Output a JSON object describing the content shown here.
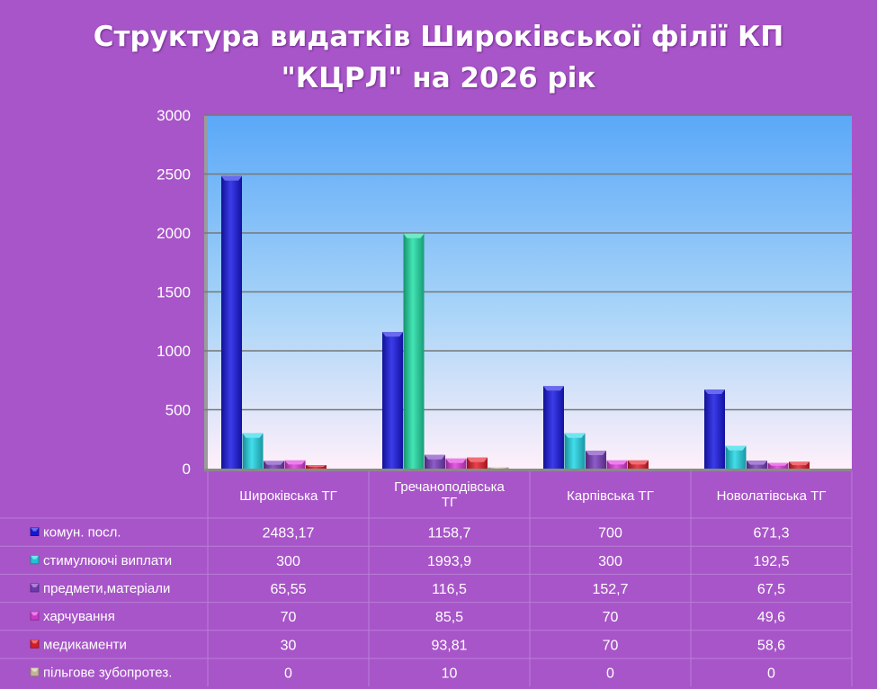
{
  "chart_data": {
    "type": "bar",
    "title": "Структура видатків Широківської філії КП \"КЦРЛ\" на 2026 рік",
    "title_lines": [
      "Структура видатків Широківської філії КП",
      "\"КЦРЛ\" на 2026 рік"
    ],
    "categories": [
      "Широківська ТГ",
      "Гречаноподівська ТГ",
      "Карпівська ТГ",
      "Новолатівська ТГ"
    ],
    "ylim": [
      0,
      3000
    ],
    "yticks": [
      "0",
      "500",
      "1000",
      "1500",
      "2000",
      "2500",
      "3000"
    ],
    "grid": true,
    "legend": "data-table",
    "series": [
      {
        "name": "комун. посл.",
        "color": "#1a1ae6",
        "values": [
          2483.17,
          1158.7,
          700,
          671.3
        ],
        "labels": [
          "2483,17",
          "1158,7",
          "700",
          "671,3"
        ]
      },
      {
        "name": "стимулюючі виплати",
        "color": "#22d8e8",
        "values": [
          300,
          1993.9,
          300,
          192.5
        ],
        "labels": [
          "300",
          "1993,9",
          "300",
          "192,5"
        ]
      },
      {
        "name": "предмети,матеріали",
        "color": "#7a3fbf",
        "values": [
          65.55,
          116.5,
          152.7,
          67.5
        ],
        "labels": [
          "65,55",
          "116,5",
          "152,7",
          "67,5"
        ]
      },
      {
        "name": "харчування",
        "color": "#e23ce0",
        "values": [
          70,
          85.5,
          70,
          49.6
        ],
        "labels": [
          "70",
          "85,5",
          "70",
          "49,6"
        ]
      },
      {
        "name": "медикаменти",
        "color": "#e8202c",
        "values": [
          30,
          93.81,
          70,
          58.6
        ],
        "labels": [
          "30",
          "93,81",
          "70",
          "58,6"
        ]
      },
      {
        "name": "пільгове зубопротез.",
        "color": "#d8c8a8",
        "values": [
          0,
          10,
          0,
          0
        ],
        "labels": [
          "0",
          "10",
          "0",
          "0"
        ]
      }
    ],
    "special_colors": {
      "Гречаноподівська ТГ|стимулюючі виплати": "#22e0a8"
    }
  }
}
